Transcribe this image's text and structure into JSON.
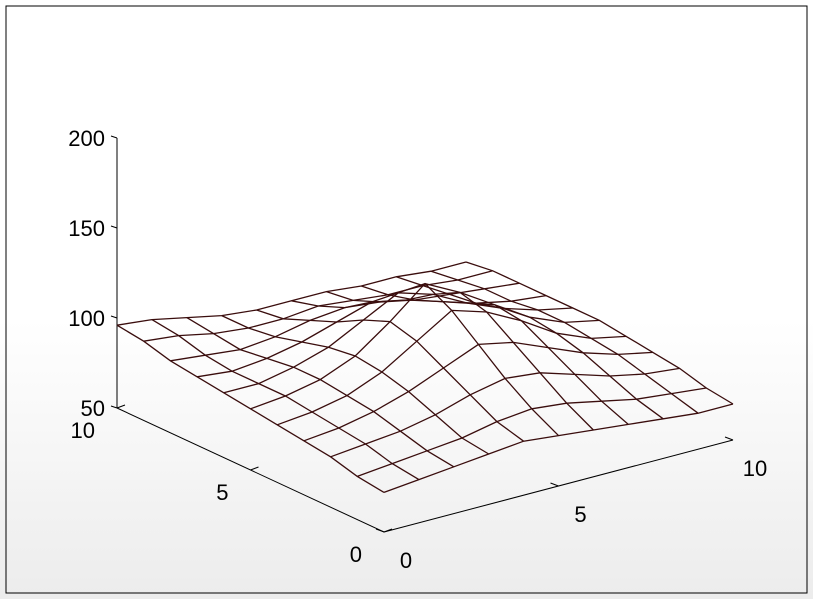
{
  "chart_data": {
    "type": "surface-mesh",
    "title": "",
    "xlabel": "",
    "ylabel": "",
    "zlabel": "",
    "x": [
      0,
      1,
      2,
      3,
      4,
      5,
      6,
      7,
      8,
      9,
      10
    ],
    "y": [
      0,
      1,
      2,
      3,
      4,
      5,
      6,
      7,
      8,
      9,
      10
    ],
    "z": [
      [
        72,
        74,
        76,
        78,
        80,
        78,
        76,
        74,
        72,
        70,
        70
      ],
      [
        74,
        76,
        78,
        80,
        84,
        86,
        84,
        80,
        76,
        74,
        72
      ],
      [
        78,
        80,
        82,
        86,
        92,
        96,
        94,
        88,
        82,
        78,
        76
      ],
      [
        80,
        82,
        86,
        92,
        100,
        108,
        104,
        96,
        88,
        82,
        78
      ],
      [
        82,
        84,
        88,
        96,
        108,
        120,
        114,
        104,
        92,
        84,
        80
      ],
      [
        84,
        86,
        90,
        98,
        112,
        128,
        118,
        106,
        94,
        86,
        82
      ],
      [
        86,
        86,
        90,
        96,
        106,
        116,
        110,
        100,
        92,
        86,
        82
      ],
      [
        88,
        86,
        88,
        92,
        98,
        104,
        100,
        94,
        88,
        84,
        82
      ],
      [
        90,
        88,
        86,
        88,
        92,
        94,
        92,
        88,
        86,
        84,
        82
      ],
      [
        94,
        92,
        88,
        86,
        86,
        88,
        86,
        84,
        84,
        82,
        82
      ],
      [
        96,
        94,
        90,
        86,
        84,
        84,
        84,
        82,
        82,
        80,
        80
      ]
    ],
    "xlim": [
      0,
      10
    ],
    "ylim": [
      0,
      10
    ],
    "zlim": [
      50,
      200
    ],
    "x_ticks": [
      "0",
      "5",
      "10"
    ],
    "y_ticks": [
      "0",
      "5",
      "10"
    ],
    "z_ticks": [
      "50",
      "100",
      "150",
      "200"
    ],
    "colors": {
      "mesh": "#3a0d0d",
      "axes": "#000000",
      "background": "#ffffff"
    },
    "grid": false
  }
}
